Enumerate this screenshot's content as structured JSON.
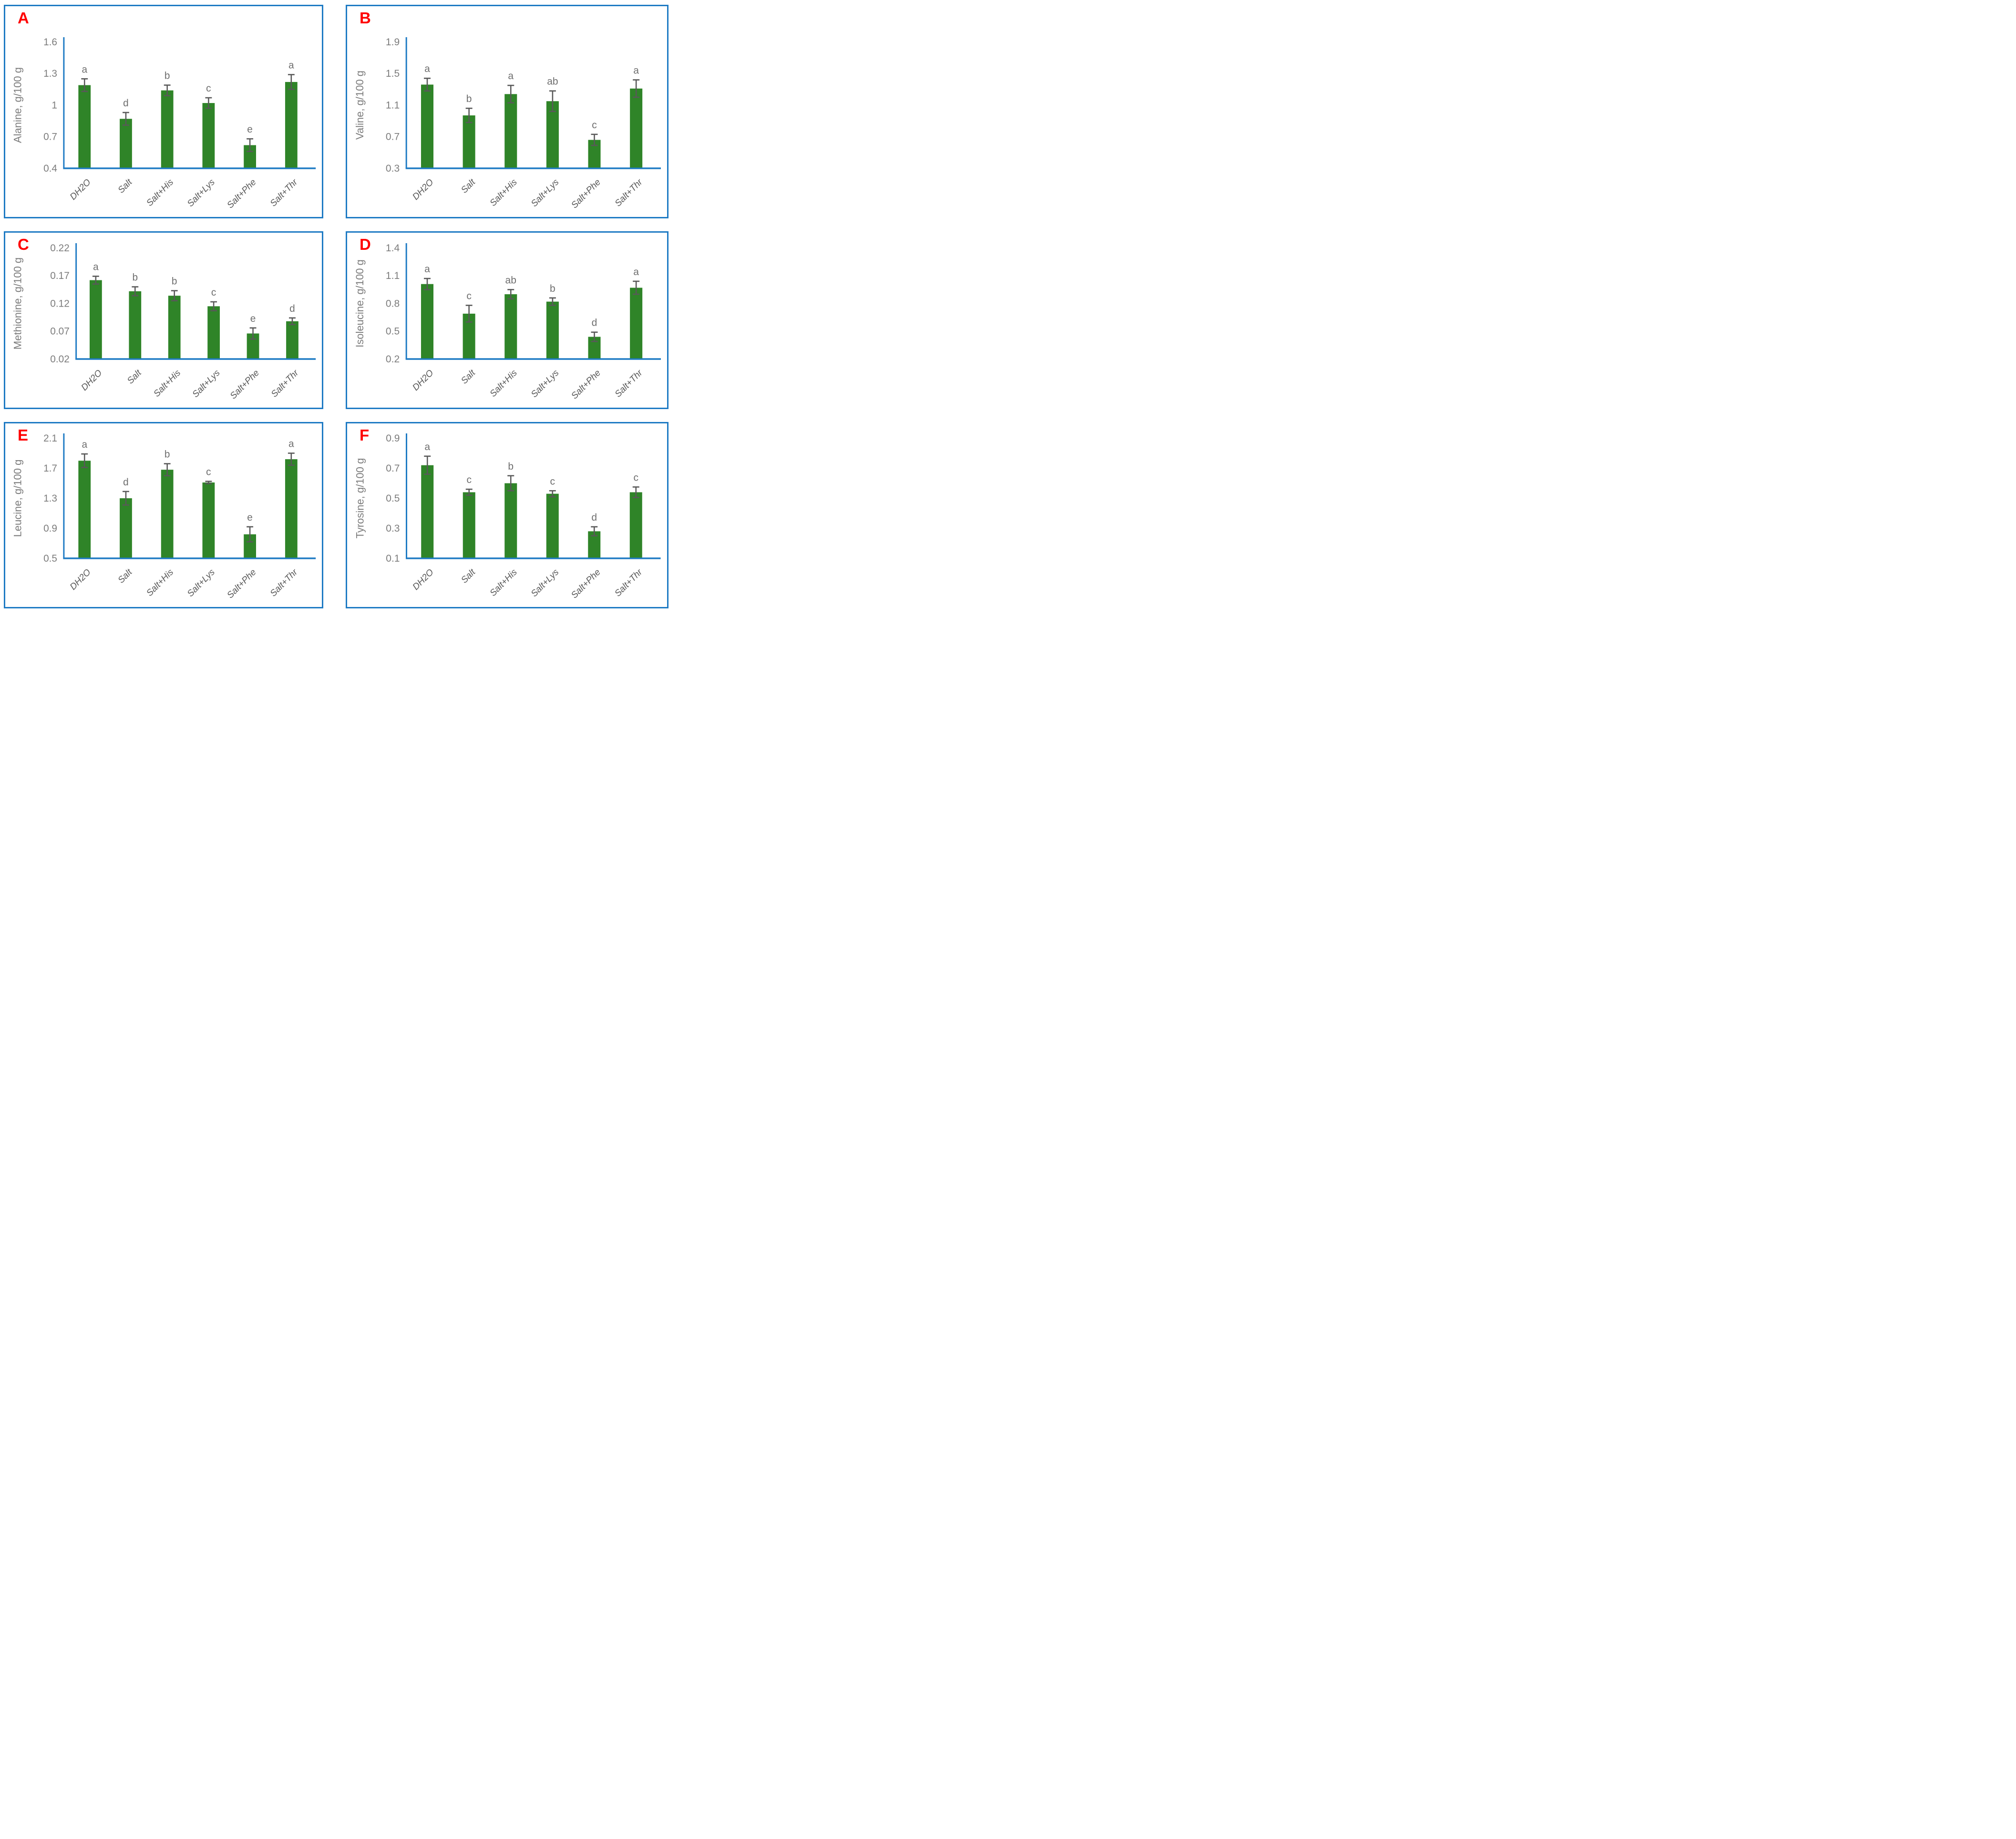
{
  "figure": {
    "description": "Six-panel bar chart figure of amino acid contents under different treatments",
    "panel_letters": [
      "A",
      "B",
      "C",
      "D",
      "E",
      "F"
    ]
  },
  "colors": {
    "bar": "#2F8428",
    "axis": "#1F7BC4",
    "border": "#1F7BC4",
    "panel_letter": "#FF0000",
    "tick_text": "#7C7C7C",
    "axis_title_text": "#7C7C7C",
    "sig_letter_text": "#6E6E6E",
    "x_label_text": "#595959",
    "error_bar": "#595959"
  },
  "chart_data": [
    {
      "panel": "A",
      "type": "bar",
      "ylabel": "Alanine, g/100 g",
      "xlabel": "",
      "ylim": [
        0.4,
        1.6
      ],
      "yticks": [
        "0.4",
        "0.7",
        "1",
        "1.3",
        "1.6"
      ],
      "categories": [
        "DH2O",
        "Salt",
        "Salt+His",
        "Salt+Lys",
        "Salt+Phe",
        "Salt+Thr"
      ],
      "values": [
        1.19,
        0.87,
        1.14,
        1.02,
        0.62,
        1.22
      ],
      "errors": [
        0.06,
        0.06,
        0.05,
        0.05,
        0.06,
        0.07
      ],
      "sig_letters": [
        "a",
        "d",
        "b",
        "c",
        "e",
        "a"
      ],
      "grid": false,
      "legend": false
    },
    {
      "panel": "B",
      "type": "bar",
      "ylabel": "Valine, g/100 g",
      "xlabel": "",
      "ylim": [
        0.3,
        1.9
      ],
      "yticks": [
        "0.3",
        "0.7",
        "1.1",
        "1.5",
        "1.9"
      ],
      "categories": [
        "DH2O",
        "Salt",
        "Salt+His",
        "Salt+Lys",
        "Salt+Phe",
        "Salt+Thr"
      ],
      "values": [
        1.36,
        0.97,
        1.24,
        1.15,
        0.66,
        1.31
      ],
      "errors": [
        0.08,
        0.09,
        0.11,
        0.13,
        0.07,
        0.11
      ],
      "sig_letters": [
        "a",
        "b",
        "a",
        "ab",
        "c",
        "a"
      ],
      "grid": false,
      "legend": false
    },
    {
      "panel": "C",
      "type": "bar",
      "ylabel": "Methionine, g/100 g",
      "xlabel": "",
      "ylim": [
        0.02,
        0.22
      ],
      "yticks": [
        "0.02",
        "0.07",
        "0.12",
        "0.17",
        "0.22"
      ],
      "categories": [
        "DH2O",
        "Salt",
        "Salt+His",
        "Salt+Lys",
        "Salt+Phe",
        "Salt+Thr"
      ],
      "values": [
        0.162,
        0.142,
        0.134,
        0.115,
        0.066,
        0.088
      ],
      "errors": [
        0.007,
        0.008,
        0.009,
        0.008,
        0.01,
        0.006
      ],
      "sig_letters": [
        "a",
        "b",
        "b",
        "c",
        "e",
        "d"
      ],
      "grid": false,
      "legend": false
    },
    {
      "panel": "D",
      "type": "bar",
      "ylabel": "Isoleucine, g/100 g",
      "xlabel": "",
      "ylim": [
        0.2,
        1.4
      ],
      "yticks": [
        "0.2",
        "0.5",
        "0.8",
        "1.1",
        "1.4"
      ],
      "categories": [
        "DH2O",
        "Salt",
        "Salt+His",
        "Salt+Lys",
        "Salt+Phe",
        "Salt+Thr"
      ],
      "values": [
        1.01,
        0.69,
        0.9,
        0.82,
        0.44,
        0.97
      ],
      "errors": [
        0.06,
        0.09,
        0.05,
        0.04,
        0.05,
        0.07
      ],
      "sig_letters": [
        "a",
        "c",
        "ab",
        "b",
        "d",
        "a"
      ],
      "grid": false,
      "legend": false
    },
    {
      "panel": "E",
      "type": "bar",
      "ylabel": "Leucine, g/100 g",
      "xlabel": "",
      "ylim": [
        0.5,
        2.1
      ],
      "yticks": [
        "0.5",
        "0.9",
        "1.3",
        "1.7",
        "2.1"
      ],
      "categories": [
        "DH2O",
        "Salt",
        "Salt+His",
        "Salt+Lys",
        "Salt+Phe",
        "Salt+Thr"
      ],
      "values": [
        1.8,
        1.3,
        1.68,
        1.51,
        0.82,
        1.82
      ],
      "errors": [
        0.09,
        0.09,
        0.08,
        0.015,
        0.1,
        0.08
      ],
      "sig_letters": [
        "a",
        "d",
        "b",
        "c",
        "e",
        "a"
      ],
      "grid": false,
      "legend": false
    },
    {
      "panel": "F",
      "type": "bar",
      "ylabel": "Tyrosine, g/100 g",
      "xlabel": "",
      "ylim": [
        0.1,
        0.9
      ],
      "yticks": [
        "0.1",
        "0.3",
        "0.5",
        "0.7",
        "0.9"
      ],
      "categories": [
        "DH2O",
        "Salt",
        "Salt+His",
        "Salt+Lys",
        "Salt+Phe",
        "Salt+Thr"
      ],
      "values": [
        0.72,
        0.54,
        0.6,
        0.53,
        0.28,
        0.54
      ],
      "errors": [
        0.06,
        0.02,
        0.05,
        0.02,
        0.03,
        0.035
      ],
      "sig_letters": [
        "a",
        "c",
        "b",
        "c",
        "d",
        "c"
      ],
      "grid": false,
      "legend": false
    }
  ]
}
